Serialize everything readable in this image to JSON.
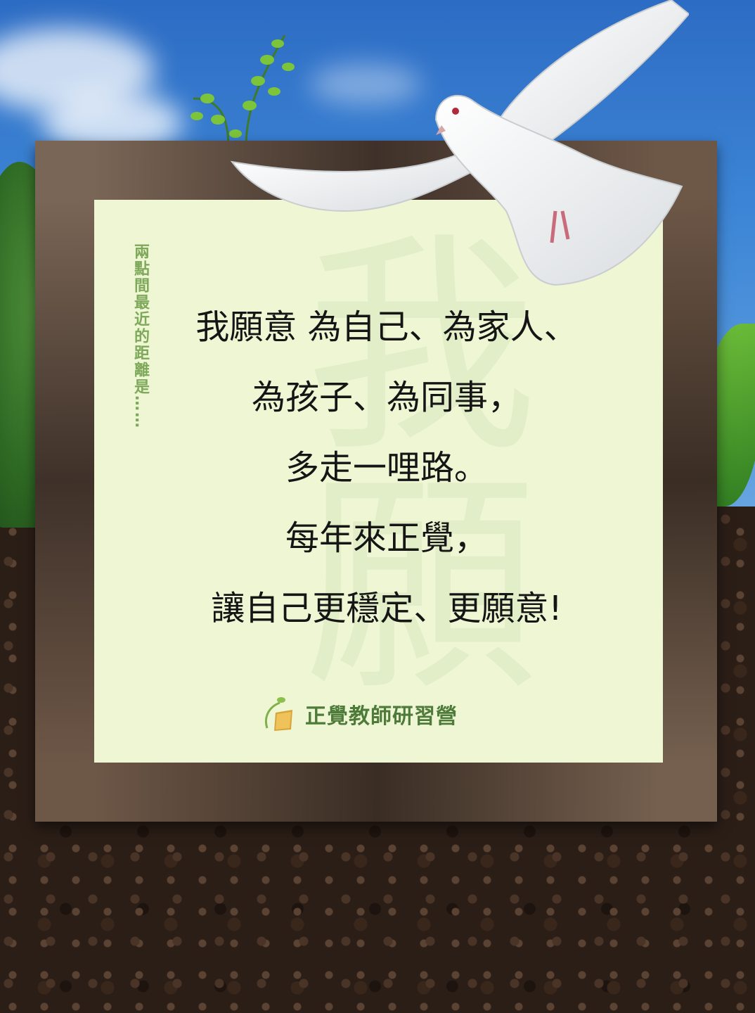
{
  "side_caption": "兩點間最近的距離是……",
  "message_lines": [
    "我願意 為自己、為家人、",
    "為孩子、為同事，",
    "多走一哩路。",
    "每年來正覺，",
    "讓自己更穩定、更願意!"
  ],
  "logo": {
    "text": "正覺教師研習營",
    "icon": "leaf-book-icon"
  },
  "colors": {
    "panel": "#eef6d3",
    "caption": "#7ea85a",
    "logo_text": "#4e7a3a",
    "message": "#151515"
  }
}
